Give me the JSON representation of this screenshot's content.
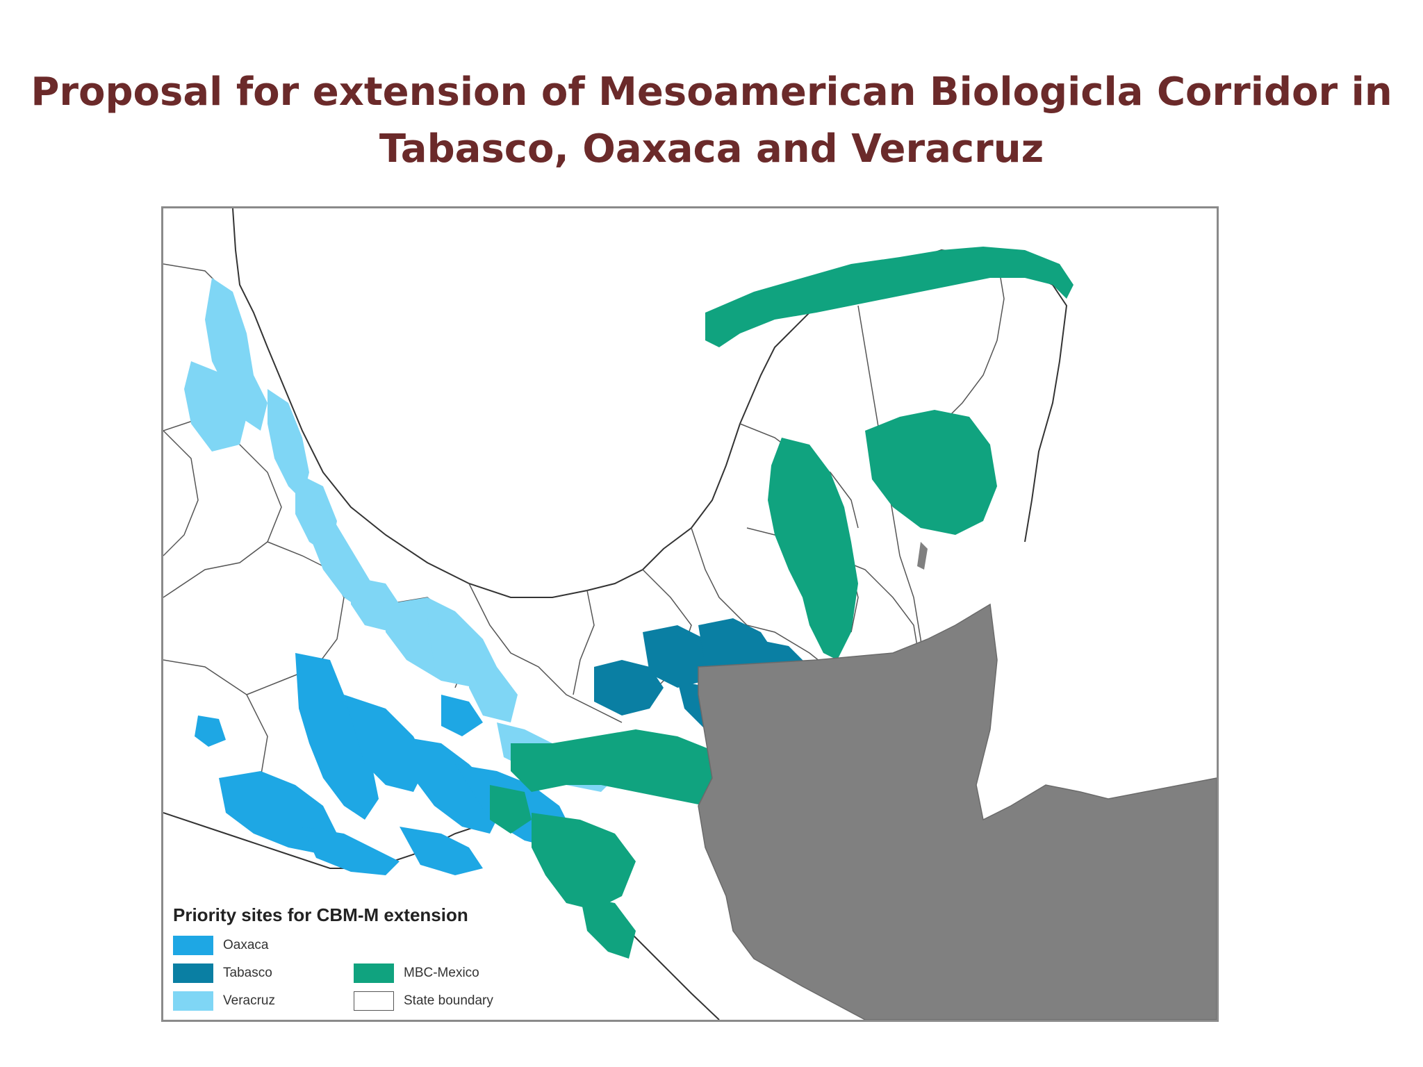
{
  "slide": {
    "title_line1": "Proposal for extension of Mesoamerican Biologicla Corridor in",
    "title_line2": "Tabasco, Oaxaca and Veracruz"
  },
  "legend": {
    "title": "Priority sites for CBM-M extension",
    "items": [
      {
        "label": "Oaxaca",
        "color": "#1ea7e4"
      },
      {
        "label": "Tabasco",
        "color": "#0a7fa3"
      },
      {
        "label": "Veracruz",
        "color": "#7fd6f5"
      },
      {
        "label": "MBC-Mexico",
        "color": "#10a37f"
      },
      {
        "label": "State boundary",
        "color": "#ffffff"
      }
    ]
  },
  "colors": {
    "title": "#6b2a2a",
    "oaxaca": "#1ea7e4",
    "tabasco": "#0a7fa3",
    "veracruz": "#7fd6f5",
    "mbc_mexico": "#10a37f",
    "outside_mexico": "#808080",
    "boundary": "#333333"
  }
}
